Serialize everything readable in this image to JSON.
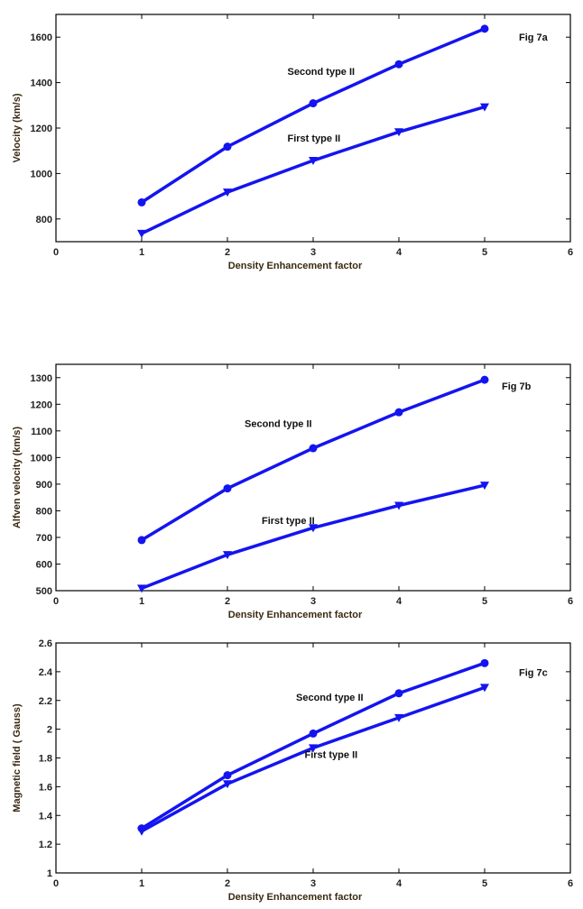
{
  "chart_data": [
    {
      "type": "line",
      "title": "",
      "annotation": "Fig 7a",
      "xlabel": "Density Enhancement factor",
      "ylabel": "Velocity (km/s)",
      "xlim": [
        0,
        6
      ],
      "ylim": [
        700,
        1700
      ],
      "xticks": [
        0,
        1,
        2,
        3,
        4,
        5,
        6
      ],
      "yticks": [
        800,
        1000,
        1200,
        1400,
        1600
      ],
      "grid": false,
      "x": [
        1,
        2,
        3,
        4,
        5
      ],
      "series": [
        {
          "name": "Second type II",
          "marker": "circle",
          "values": [
            873,
            1118,
            1309,
            1481,
            1637
          ]
        },
        {
          "name": "First type II",
          "marker": "triangle-down",
          "values": [
            736,
            918,
            1057,
            1183,
            1293
          ]
        }
      ],
      "color": "#1414f0"
    },
    {
      "type": "line",
      "title": "",
      "annotation": "Fig 7b",
      "xlabel": "Density Enhancement factor",
      "ylabel": "Alfven velocity (km/s)",
      "xlim": [
        0,
        6
      ],
      "ylim": [
        500,
        1350
      ],
      "xticks": [
        0,
        1,
        2,
        3,
        4,
        5,
        6
      ],
      "yticks": [
        500,
        600,
        700,
        800,
        900,
        1000,
        1100,
        1200,
        1300
      ],
      "grid": false,
      "x": [
        1,
        2,
        3,
        4,
        5
      ],
      "series": [
        {
          "name": "Second type II",
          "marker": "circle",
          "values": [
            690,
            884,
            1035,
            1170,
            1292
          ]
        },
        {
          "name": "First type II",
          "marker": "triangle-down",
          "values": [
            509,
            635,
            736,
            820,
            896
          ]
        }
      ],
      "color": "#1414f0"
    },
    {
      "type": "line",
      "title": "",
      "annotation": "Fig 7c",
      "xlabel": "Density Enhancement factor",
      "ylabel": "Magnetic field ( Gauss)",
      "xlim": [
        0,
        6
      ],
      "ylim": [
        1,
        2.6
      ],
      "xticks": [
        0,
        1,
        2,
        3,
        4,
        5,
        6
      ],
      "yticks": [
        1,
        1.2,
        1.4,
        1.6,
        1.8,
        2,
        2.2,
        2.4,
        2.6
      ],
      "grid": false,
      "x": [
        1,
        2,
        3,
        4,
        5
      ],
      "series": [
        {
          "name": "Second type II",
          "marker": "circle",
          "values": [
            1.31,
            1.68,
            1.97,
            2.25,
            2.46
          ]
        },
        {
          "name": "First type II",
          "marker": "triangle-down",
          "values": [
            1.29,
            1.62,
            1.87,
            2.08,
            2.29
          ]
        }
      ],
      "color": "#1414f0"
    }
  ]
}
